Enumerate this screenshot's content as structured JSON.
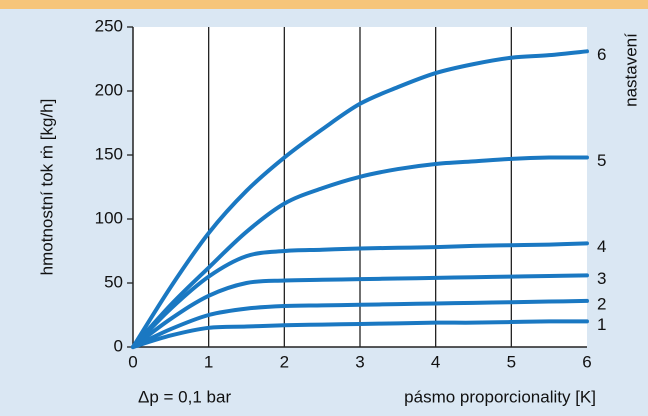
{
  "chart_data": {
    "type": "line",
    "y_label": "hmotnostní tok ṁ [kg/h]",
    "x_label": "pásmo proporcionality [K]",
    "y2_label": "nastavení",
    "annotation": "Δp = 0,1 bar",
    "x": [
      0,
      0.5,
      1,
      1.5,
      2,
      2.5,
      3,
      3.5,
      4,
      4.5,
      5,
      5.5,
      6
    ],
    "series": [
      {
        "name": "1",
        "color": "#1a78c2",
        "values": [
          0,
          9,
          15,
          16,
          17,
          17.5,
          18,
          18.5,
          19,
          19,
          19.5,
          20,
          20
        ]
      },
      {
        "name": "2",
        "color": "#1a78c2",
        "values": [
          0,
          14,
          25,
          30,
          32,
          32.5,
          33,
          33.5,
          34,
          34.5,
          35,
          35.5,
          36
        ]
      },
      {
        "name": "3",
        "color": "#1a78c2",
        "values": [
          0,
          22,
          40,
          50,
          52,
          52.5,
          53,
          53.5,
          54,
          54.5,
          55,
          55.5,
          56
        ]
      },
      {
        "name": "4",
        "color": "#1a78c2",
        "values": [
          0,
          30,
          55,
          71,
          75,
          76,
          77,
          77.5,
          78,
          79,
          79.5,
          80,
          81
        ]
      },
      {
        "name": "5",
        "color": "#1a78c2",
        "values": [
          0,
          33,
          62,
          90,
          112,
          124,
          133,
          139,
          143,
          145,
          147,
          148,
          148
        ]
      },
      {
        "name": "6",
        "color": "#1a78c2",
        "values": [
          0,
          47,
          89,
          122,
          148,
          170,
          190,
          203,
          214,
          221,
          226,
          228,
          231
        ]
      }
    ],
    "xlim": [
      0,
      6
    ],
    "xticks": [
      0,
      1,
      2,
      3,
      4,
      5,
      6
    ],
    "ylim": [
      0,
      250
    ],
    "yticks": [
      0,
      50,
      100,
      150,
      200,
      250
    ],
    "grid": true
  }
}
